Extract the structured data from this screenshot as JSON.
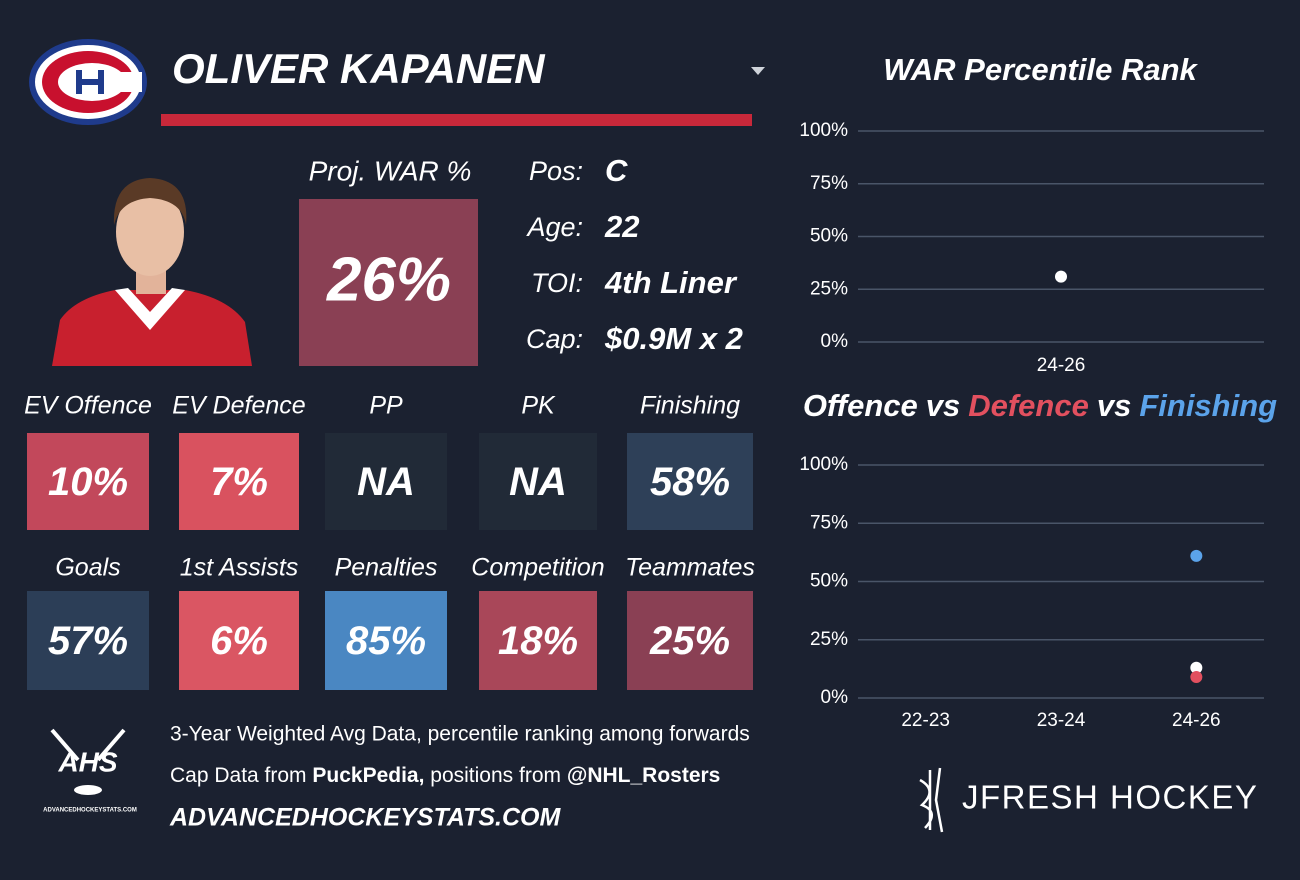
{
  "header": {
    "player": "OLIVER KAPANEN"
  },
  "projection": {
    "label": "Proj. WAR %",
    "value": "26%",
    "color": "#8a4054"
  },
  "info": [
    {
      "label": "Pos:",
      "value": "C"
    },
    {
      "label": "Age:",
      "value": "22"
    },
    {
      "label": "TOI:",
      "value": "4th Liner"
    },
    {
      "label": "Cap:",
      "value": "$0.9M x 2"
    }
  ],
  "tiles": [
    [
      {
        "label": "EV Offence",
        "value": "10%",
        "color": "#c2485b"
      },
      {
        "label": "EV Defence",
        "value": "7%",
        "color": "#d9525f"
      },
      {
        "label": "PP",
        "value": "NA",
        "color": "#212a37"
      },
      {
        "label": "PK",
        "value": "NA",
        "color": "#212a37"
      },
      {
        "label": "Finishing",
        "value": "58%",
        "color": "#2e4058"
      }
    ],
    [
      {
        "label": "Goals",
        "value": "57%",
        "color": "#2c3e57"
      },
      {
        "label": "1st Assists",
        "value": "6%",
        "color": "#da5663"
      },
      {
        "label": "Penalties",
        "value": "85%",
        "color": "#4a87c2"
      },
      {
        "label": "Competition",
        "value": "18%",
        "color": "#a94759"
      },
      {
        "label": "Teammates",
        "value": "25%",
        "color": "#8a4054"
      }
    ]
  ],
  "footer": {
    "logo_text": "AHS",
    "logo_caption": "ADVANCEDHOCKEYSTATS.COM",
    "note": "3-Year Weighted Avg Data, percentile ranking among forwards",
    "sources": [
      {
        "text": "Cap Data from ",
        "bold": false
      },
      {
        "text": "PuckPedia,",
        "bold": true
      },
      {
        "text": " positions from ",
        "bold": false
      },
      {
        "text": "@NHL_Rosters",
        "bold": true
      }
    ],
    "website": "ADVANCEDHOCKEYSTATS.COM"
  },
  "brand": "JFRESH HOCKEY",
  "chart_data": [
    {
      "type": "scatter",
      "title": "WAR Percentile Rank",
      "categories": [
        "24-26"
      ],
      "values": [
        31
      ],
      "color": "#ffffff",
      "ylim": [
        0,
        100
      ],
      "grid": true,
      "yticks": [
        {
          "value": 0,
          "label": "0%"
        },
        {
          "value": 25,
          "label": "25%"
        },
        {
          "value": 50,
          "label": "50%"
        },
        {
          "value": 75,
          "label": "75%"
        },
        {
          "value": 100,
          "label": "100%"
        }
      ]
    },
    {
      "type": "scatter",
      "title_connector": "vs",
      "categories": [
        "22-23",
        "23-24",
        "24-26"
      ],
      "series": [
        {
          "name": "Offence",
          "color": "#ffffff",
          "values": [
            null,
            null,
            13
          ]
        },
        {
          "name": "Defence",
          "color": "#e2505f",
          "values": [
            null,
            null,
            9
          ]
        },
        {
          "name": "Finishing",
          "color": "#5ba3ea",
          "values": [
            null,
            null,
            61
          ]
        }
      ],
      "ylim": [
        0,
        100
      ],
      "grid": true,
      "yticks": [
        {
          "value": 0,
          "label": "0%"
        },
        {
          "value": 25,
          "label": "25%"
        },
        {
          "value": 50,
          "label": "50%"
        },
        {
          "value": 75,
          "label": "75%"
        },
        {
          "value": 100,
          "label": "100%"
        }
      ]
    }
  ]
}
